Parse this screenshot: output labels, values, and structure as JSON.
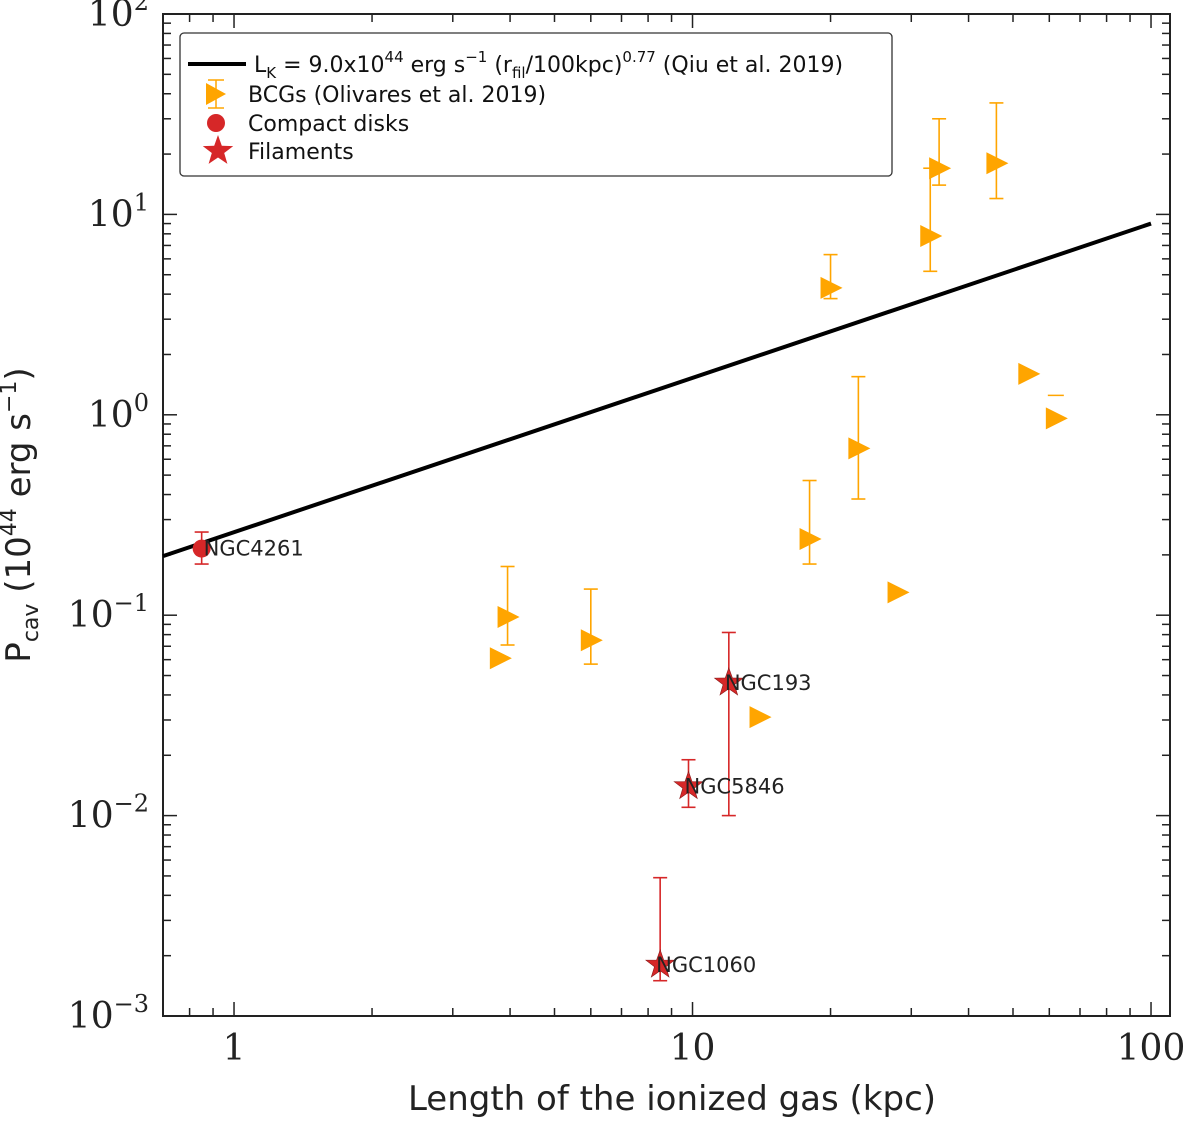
{
  "chart_data": {
    "type": "scatter",
    "title": "",
    "xlabel": "Length of the ionized gas (kpc)",
    "ylabel": {
      "main": "P",
      "sub": "cav",
      "pre": " (10",
      "sup": "44",
      "mid": " erg s",
      "sup2": "−1",
      "post": ")"
    },
    "xscale": "log",
    "yscale": "log",
    "xlim": [
      0.7,
      110
    ],
    "ylim": [
      0.001,
      100
    ],
    "x_ticks": [
      {
        "value": 1,
        "label": "1"
      },
      {
        "value": 10,
        "label": "10"
      },
      {
        "value": 100,
        "label": "100"
      }
    ],
    "y_ticks": [
      {
        "value": 0.001,
        "base": "10",
        "exp": "−3"
      },
      {
        "value": 0.01,
        "base": "10",
        "exp": "−2"
      },
      {
        "value": 0.1,
        "base": "10",
        "exp": "−1"
      },
      {
        "value": 1,
        "base": "10",
        "exp": "0"
      },
      {
        "value": 10,
        "base": "10",
        "exp": "1"
      },
      {
        "value": 100,
        "base": "10",
        "exp": "2"
      }
    ],
    "legend_position": "top-left",
    "colors": {
      "relation": "#000000",
      "bcg": "#FFA500",
      "compact": "#D62728",
      "filament": "#D62728"
    },
    "series": [
      {
        "name": "L_K = 9.0x10^44 erg s^-1 (r_fil/100kpc)^0.77 (Qiu et al. 2019)",
        "legend": {
          "pre": "L",
          "sub1": "K",
          "mid1": " = 9.0x10",
          "sup1": "44",
          "mid2": " erg s",
          "sup2": "−1",
          "mid3": " (r",
          "sub2": "fil",
          "mid4": "/100kpc)",
          "sup3": "0.77",
          "post": " (Qiu et al. 2019)"
        },
        "kind": "relation",
        "normalization": 9.0,
        "exponent": 0.77,
        "pivot": 100
      },
      {
        "name": "BCGs (Olivares et al. 2019)",
        "kind": "bcg",
        "points": [
          {
            "x": 3.8,
            "y": 0.061
          },
          {
            "x": 3.95,
            "y": 0.098,
            "ylo": 0.071,
            "yhi": 0.175
          },
          {
            "x": 6.0,
            "y": 0.075,
            "ylo": 0.057,
            "yhi": 0.135
          },
          {
            "x": 14.0,
            "y": 0.031
          },
          {
            "x": 18.0,
            "y": 0.24,
            "ylo": 0.18,
            "yhi": 0.47
          },
          {
            "x": 20.0,
            "y": 4.3,
            "ylo": 3.8,
            "yhi": 6.3
          },
          {
            "x": 23.0,
            "y": 0.68,
            "ylo": 0.38,
            "yhi": 1.55
          },
          {
            "x": 28.0,
            "y": 0.13
          },
          {
            "x": 33.0,
            "y": 7.8,
            "ylo": 5.2,
            "yhi": 17.0
          },
          {
            "x": 34.5,
            "y": 17.0,
            "ylo": 14.0,
            "yhi": 30.0
          },
          {
            "x": 46.0,
            "y": 18.0,
            "ylo": 12.0,
            "yhi": 36.0
          },
          {
            "x": 54.0,
            "y": 1.6
          },
          {
            "x": 62.0,
            "y": 0.96,
            "capOnly": 1.25
          }
        ]
      },
      {
        "name": "Compact disks",
        "kind": "compact",
        "points": [
          {
            "x": 0.85,
            "y": 0.215,
            "ylo": 0.18,
            "yhi": 0.26,
            "label": "NGC4261"
          }
        ]
      },
      {
        "name": "Filaments",
        "kind": "filament",
        "points": [
          {
            "x": 12.0,
            "y": 0.046,
            "ylo": 0.01,
            "yhi": 0.082,
            "label": "NGC193"
          },
          {
            "x": 9.8,
            "y": 0.014,
            "ylo": 0.011,
            "yhi": 0.019,
            "label": "NGC5846"
          },
          {
            "x": 8.5,
            "y": 0.0018,
            "ylo": 0.0015,
            "yhi": 0.0049,
            "label": "NGC1060"
          }
        ]
      }
    ]
  }
}
